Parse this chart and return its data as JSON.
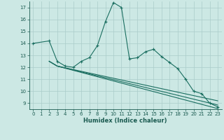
{
  "xlabel": "Humidex (Indice chaleur)",
  "xlim": [
    -0.5,
    23.5
  ],
  "ylim": [
    8.5,
    17.5
  ],
  "yticks": [
    9,
    10,
    11,
    12,
    13,
    14,
    15,
    16,
    17
  ],
  "xticks": [
    0,
    1,
    2,
    3,
    4,
    5,
    6,
    7,
    8,
    9,
    10,
    11,
    12,
    13,
    14,
    15,
    16,
    17,
    18,
    19,
    20,
    21,
    22,
    23
  ],
  "background_color": "#cce8e4",
  "grid_color": "#aaccca",
  "line_color": "#1a6e60",
  "lines": [
    {
      "x": [
        0,
        2,
        3,
        4,
        5,
        6,
        7,
        8,
        9,
        10,
        11,
        12,
        13,
        14,
        15,
        16,
        17,
        18,
        19,
        20,
        21,
        22,
        23
      ],
      "y": [
        14.0,
        14.2,
        12.5,
        12.1,
        12.0,
        12.5,
        12.8,
        13.8,
        15.8,
        17.4,
        17.0,
        12.7,
        12.8,
        13.3,
        13.5,
        12.9,
        12.4,
        11.9,
        11.0,
        10.0,
        9.8,
        9.0,
        8.7
      ],
      "marker": true
    },
    {
      "x": [
        2,
        3,
        23
      ],
      "y": [
        12.5,
        12.1,
        9.2
      ],
      "marker": false
    },
    {
      "x": [
        2,
        3,
        23
      ],
      "y": [
        12.5,
        12.1,
        8.85
      ],
      "marker": false
    },
    {
      "x": [
        2,
        3,
        23
      ],
      "y": [
        12.5,
        12.1,
        8.55
      ],
      "marker": false
    }
  ]
}
